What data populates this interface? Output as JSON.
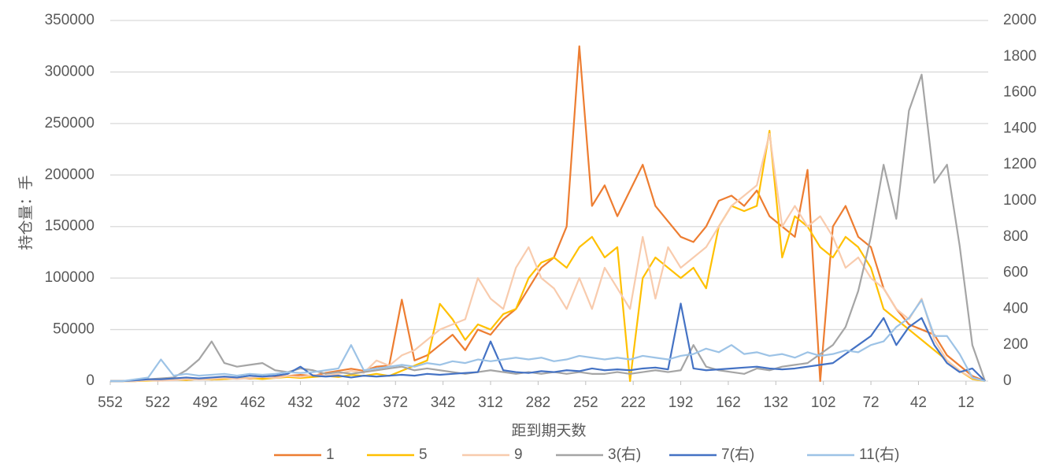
{
  "chart_data": {
    "type": "line",
    "x_label": "距到期天数",
    "y_label": "持仓量：手",
    "x": [
      552,
      544,
      536,
      528,
      520,
      512,
      504,
      496,
      488,
      480,
      472,
      464,
      456,
      448,
      440,
      432,
      424,
      416,
      408,
      400,
      392,
      384,
      376,
      368,
      360,
      352,
      344,
      336,
      328,
      320,
      312,
      304,
      296,
      288,
      280,
      272,
      264,
      256,
      248,
      240,
      232,
      224,
      216,
      208,
      200,
      192,
      184,
      176,
      168,
      160,
      152,
      144,
      136,
      128,
      120,
      112,
      104,
      96,
      88,
      80,
      72,
      64,
      56,
      48,
      40,
      32,
      24,
      16,
      8,
      0
    ],
    "xlim": [
      552,
      -2
    ],
    "xticks": [
      552,
      522,
      492,
      462,
      432,
      402,
      372,
      342,
      312,
      282,
      252,
      222,
      192,
      162,
      132,
      102,
      72,
      42,
      12
    ],
    "ylim": [
      0,
      350000
    ],
    "yticks": [
      0,
      50000,
      100000,
      150000,
      200000,
      250000,
      300000,
      350000
    ],
    "y2lim": [
      0,
      2000
    ],
    "y2ticks": [
      0,
      200,
      400,
      600,
      800,
      1000,
      1200,
      1400,
      1600,
      1800,
      2000
    ],
    "grid": true,
    "legend": "bottom",
    "series": [
      {
        "name": "1",
        "color": "#ed7d31",
        "values": [
          0,
          0,
          0,
          1000,
          500,
          2000,
          1000,
          2000,
          1500,
          2000,
          3000,
          2500,
          3000,
          4000,
          5000,
          6000,
          5000,
          8000,
          10000,
          12000,
          10000,
          14000,
          15000,
          79000,
          20000,
          25000,
          35000,
          45000,
          30000,
          50000,
          45000,
          60000,
          70000,
          90000,
          110000,
          120000,
          150000,
          325000,
          170000,
          190000,
          160000,
          185000,
          210000,
          170000,
          155000,
          140000,
          135000,
          150000,
          175000,
          180000,
          170000,
          185000,
          160000,
          150000,
          140000,
          205000,
          0,
          150000,
          170000,
          140000,
          130000,
          90000,
          70000,
          55000,
          50000,
          45000,
          25000,
          15000,
          5000,
          0
        ]
      },
      {
        "name": "5",
        "color": "#ffc000",
        "values": [
          0,
          0,
          0,
          500,
          1000,
          1500,
          1000,
          2000,
          1500,
          2000,
          2500,
          3000,
          2000,
          3000,
          4000,
          3000,
          4000,
          5000,
          4000,
          6000,
          5000,
          7000,
          5000,
          10000,
          15000,
          20000,
          75000,
          60000,
          40000,
          55000,
          50000,
          65000,
          70000,
          100000,
          115000,
          120000,
          110000,
          130000,
          140000,
          120000,
          130000,
          0,
          100000,
          120000,
          110000,
          100000,
          110000,
          90000,
          150000,
          170000,
          165000,
          170000,
          243000,
          120000,
          160000,
          150000,
          130000,
          120000,
          140000,
          130000,
          110000,
          70000,
          60000,
          50000,
          40000,
          30000,
          20000,
          10000,
          2000,
          0
        ]
      },
      {
        "name": "9",
        "color": "#f8cbad",
        "values": [
          0,
          0,
          0,
          1000,
          500,
          1000,
          2000,
          1500,
          2000,
          3000,
          2000,
          3000,
          4000,
          3000,
          5000,
          4000,
          6000,
          5000,
          7000,
          10000,
          8000,
          20000,
          15000,
          25000,
          30000,
          40000,
          50000,
          55000,
          60000,
          100000,
          80000,
          70000,
          110000,
          130000,
          100000,
          90000,
          70000,
          100000,
          70000,
          110000,
          90000,
          70000,
          140000,
          80000,
          130000,
          110000,
          120000,
          130000,
          150000,
          170000,
          180000,
          190000,
          240000,
          150000,
          170000,
          150000,
          160000,
          140000,
          110000,
          120000,
          100000,
          90000,
          70000,
          60000,
          80000,
          40000,
          20000,
          10000,
          3000,
          0
        ]
      },
      {
        "name": "3(右)",
        "color": "#a5a5a5",
        "axis": "y2",
        "values": [
          0,
          0,
          5,
          10,
          15,
          20,
          60,
          120,
          220,
          100,
          80,
          90,
          100,
          60,
          50,
          70,
          60,
          40,
          50,
          40,
          50,
          60,
          70,
          80,
          60,
          70,
          60,
          50,
          40,
          50,
          60,
          50,
          40,
          50,
          40,
          50,
          40,
          50,
          40,
          40,
          50,
          40,
          50,
          60,
          50,
          60,
          200,
          80,
          60,
          50,
          40,
          70,
          60,
          80,
          90,
          100,
          150,
          200,
          300,
          500,
          800,
          1200,
          900,
          1500,
          1700,
          1100,
          1200,
          750,
          200,
          0
        ]
      },
      {
        "name": "7(右)",
        "color": "#4472c4",
        "axis": "y2",
        "values": [
          0,
          0,
          5,
          10,
          10,
          15,
          20,
          15,
          20,
          25,
          20,
          30,
          25,
          30,
          40,
          80,
          30,
          25,
          30,
          20,
          30,
          25,
          30,
          35,
          30,
          40,
          35,
          40,
          45,
          50,
          220,
          60,
          50,
          45,
          55,
          50,
          60,
          55,
          70,
          60,
          65,
          60,
          70,
          75,
          65,
          430,
          70,
          60,
          65,
          70,
          75,
          80,
          70,
          65,
          70,
          80,
          90,
          100,
          150,
          200,
          250,
          350,
          200,
          300,
          350,
          200,
          100,
          50,
          70,
          0
        ]
      },
      {
        "name": "11(右)",
        "color": "#9dc3e6",
        "axis": "y2",
        "values": [
          0,
          0,
          10,
          20,
          120,
          30,
          40,
          30,
          35,
          40,
          30,
          40,
          35,
          40,
          50,
          45,
          50,
          60,
          70,
          200,
          60,
          70,
          80,
          90,
          80,
          100,
          90,
          110,
          100,
          120,
          110,
          120,
          130,
          120,
          130,
          110,
          120,
          140,
          130,
          120,
          130,
          120,
          140,
          130,
          120,
          140,
          150,
          180,
          160,
          200,
          150,
          160,
          140,
          150,
          130,
          160,
          140,
          150,
          170,
          160,
          200,
          220,
          300,
          350,
          450,
          250,
          250,
          150,
          20,
          0
        ]
      }
    ]
  }
}
